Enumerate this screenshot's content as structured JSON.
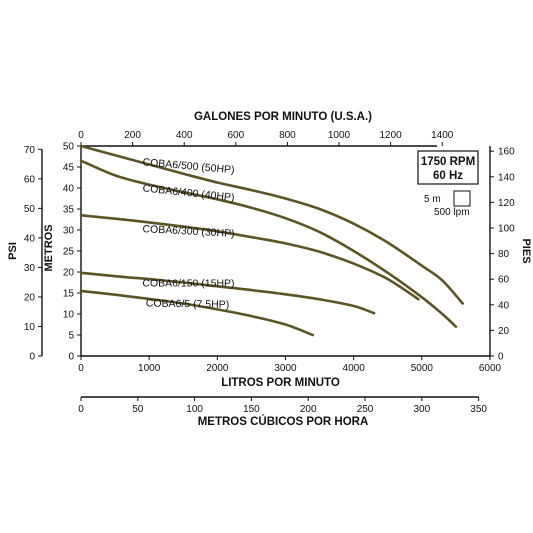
{
  "chart_data": {
    "type": "line",
    "title": "",
    "xlabel": "LITROS POR MINUTO",
    "ylabel": "METROS",
    "xlim": [
      0,
      6000
    ],
    "ylim": [
      0,
      50
    ],
    "grid": false,
    "x_ticks": [
      "0",
      "1000",
      "2000",
      "3000",
      "4000",
      "5000",
      "6000"
    ],
    "y_ticks": [
      "0",
      "5",
      "10",
      "15",
      "20",
      "25",
      "30",
      "35",
      "40",
      "45",
      "50"
    ],
    "secondary_axes": {
      "top": {
        "label": "GALONES POR MINUTO (U.S.A.)",
        "ticks": [
          "0",
          "200",
          "400",
          "600",
          "800",
          "1000",
          "1200",
          "1400"
        ],
        "values": [
          0,
          200,
          400,
          600,
          800,
          1000,
          1200,
          1400
        ]
      },
      "bottom": {
        "label": "METROS CÚBICOS POR HORA",
        "ticks": [
          "0",
          "50",
          "100",
          "150",
          "200",
          "250",
          "300",
          "350"
        ],
        "values": [
          0,
          50,
          100,
          150,
          200,
          250,
          300,
          350
        ]
      },
      "left_outer": {
        "label": "PSI",
        "ticks": [
          "0",
          "10",
          "20",
          "30",
          "40",
          "50",
          "60",
          "70"
        ],
        "values": [
          0,
          10,
          20,
          30,
          40,
          50,
          60,
          70
        ]
      },
      "right": {
        "label": "PIES",
        "ticks": [
          "0",
          "20",
          "40",
          "60",
          "80",
          "100",
          "120",
          "140",
          "160"
        ],
        "values": [
          0,
          20,
          40,
          60,
          80,
          100,
          120,
          140,
          160
        ]
      }
    },
    "legend_box": {
      "rpm": "1750 RPM",
      "hz": "60 Hz",
      "scale_vertical": "5 m",
      "scale_horizontal": "500 lpm"
    },
    "series": [
      {
        "name": "COBA6/500 (50HP)",
        "x": [
          0,
          500,
          1000,
          1500,
          2000,
          2500,
          3000,
          3500,
          4000,
          4500,
          5000,
          5300,
          5600
        ],
        "y": [
          50,
          47.8,
          45.6,
          43.4,
          41.3,
          39.5,
          37.5,
          35,
          31.5,
          27,
          21.5,
          18,
          12.5
        ]
      },
      {
        "name": "COBA6/400 (40HP)",
        "x": [
          0,
          500,
          1000,
          1500,
          2000,
          2500,
          3000,
          3500,
          4000,
          4500,
          5000,
          5300,
          5500
        ],
        "y": [
          46.5,
          43,
          40.8,
          39,
          37.3,
          35.3,
          32.8,
          29.5,
          25,
          19.8,
          14,
          10,
          7
        ]
      },
      {
        "name": "COBA6/300 (30HP)",
        "x": [
          0,
          500,
          1000,
          1500,
          2000,
          2500,
          3000,
          3500,
          4000,
          4500,
          4950
        ],
        "y": [
          33.5,
          32.7,
          31.8,
          30.8,
          29.7,
          28.3,
          26.8,
          24.8,
          22,
          18.3,
          13.5
        ]
      },
      {
        "name": "COBA6/150 (15HP)",
        "x": [
          0,
          500,
          1000,
          1500,
          2000,
          2500,
          3000,
          3500,
          4000,
          4300
        ],
        "y": [
          19.8,
          19,
          18.3,
          17.5,
          16.6,
          15.7,
          14.7,
          13.5,
          11.9,
          10.2
        ]
      },
      {
        "name": "COBA6/5 (7.5HP)",
        "x": [
          0,
          500,
          1000,
          1500,
          2000,
          2500,
          3000,
          3400
        ],
        "y": [
          15.5,
          14.6,
          13.6,
          12.5,
          11.1,
          9.5,
          7.5,
          5
        ]
      }
    ]
  }
}
